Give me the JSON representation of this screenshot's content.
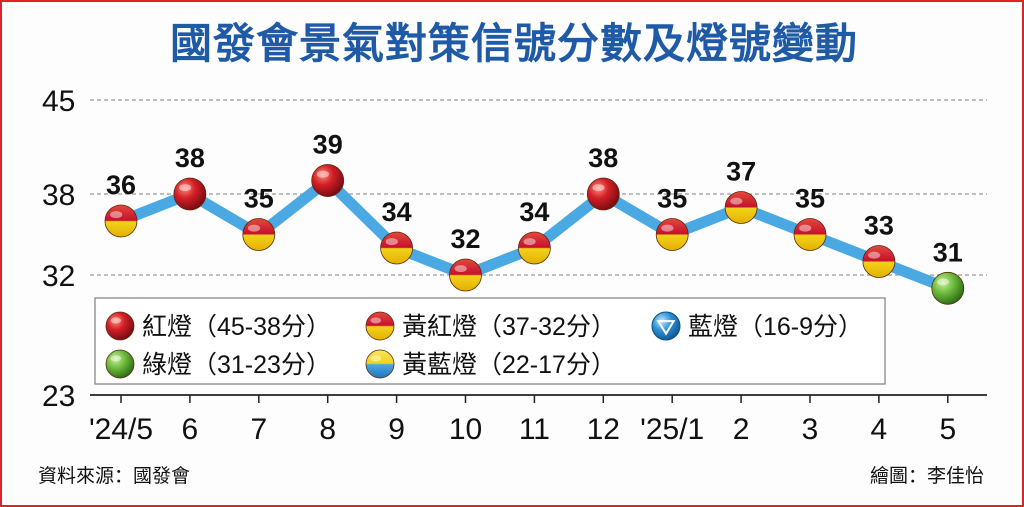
{
  "chart_data": {
    "type": "line",
    "title": "國發會景氣對策信號分數及燈號變動",
    "categories": [
      "'24/5",
      "6",
      "7",
      "8",
      "9",
      "10",
      "11",
      "12",
      "'25/1",
      "2",
      "3",
      "4",
      "5"
    ],
    "series": [
      {
        "values": [
          36,
          38,
          35,
          39,
          34,
          32,
          34,
          38,
          35,
          37,
          35,
          33,
          31
        ],
        "signals": [
          "yellow-red",
          "red",
          "yellow-red",
          "red",
          "yellow-red",
          "yellow-red",
          "yellow-red",
          "red",
          "yellow-red",
          "yellow-red",
          "yellow-red",
          "yellow-red",
          "green"
        ]
      }
    ],
    "yticks": [
      45,
      38,
      32,
      23
    ],
    "ylim": [
      23,
      45
    ],
    "grid": true,
    "line_color": "#4aa8e2",
    "legend": [
      {
        "key": "red",
        "label": "紅燈（45-38分）"
      },
      {
        "key": "yellow-red",
        "label": "黃紅燈（37-32分）"
      },
      {
        "key": "blue",
        "label": "藍燈（16-9分）"
      },
      {
        "key": "green",
        "label": "綠燈（31-23分）"
      },
      {
        "key": "yellow-blue",
        "label": "黃藍燈（22-17分）"
      }
    ],
    "legend_position": "bottom-left",
    "colors": {
      "red": "#c8102e",
      "yellow": "#f2d21b",
      "blue": "#2a8fd6",
      "green": "#5fae32"
    }
  },
  "footer": {
    "source": "資料來源：國發會",
    "credit": "繪圖：李佳怡"
  }
}
